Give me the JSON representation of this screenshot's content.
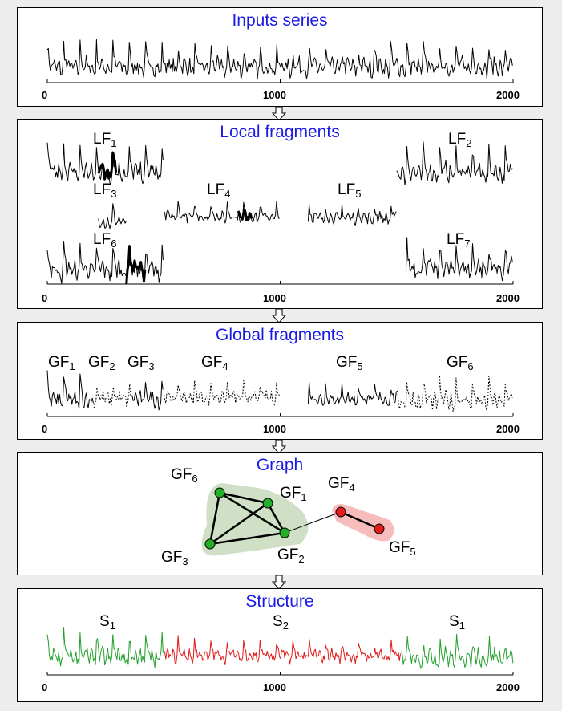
{
  "colors": {
    "title": "#1a1ae6",
    "green": "#22a02a",
    "red": "#e01818",
    "node_green": "#22b02a",
    "node_red": "#e41c1c",
    "hull_green": "#cfe0c6",
    "hull_red": "#f7bcbc"
  },
  "axis_ticks": [
    "0",
    "1000",
    "2000"
  ],
  "panels": {
    "inputs": {
      "title": "Inputs series"
    },
    "local": {
      "title": "Local fragments",
      "fragments": [
        {
          "name": "LF",
          "sub": "1"
        },
        {
          "name": "LF",
          "sub": "2"
        },
        {
          "name": "LF",
          "sub": "3"
        },
        {
          "name": "LF",
          "sub": "4"
        },
        {
          "name": "LF",
          "sub": "5"
        },
        {
          "name": "LF",
          "sub": "6"
        },
        {
          "name": "LF",
          "sub": "7"
        }
      ]
    },
    "global": {
      "title": "Global fragments",
      "fragments": [
        {
          "name": "GF",
          "sub": "1"
        },
        {
          "name": "GF",
          "sub": "2"
        },
        {
          "name": "GF",
          "sub": "3"
        },
        {
          "name": "GF",
          "sub": "4"
        },
        {
          "name": "GF",
          "sub": "5"
        },
        {
          "name": "GF",
          "sub": "6"
        }
      ]
    },
    "graph": {
      "title": "Graph",
      "nodes": [
        {
          "name": "GF",
          "sub": "6"
        },
        {
          "name": "GF",
          "sub": "1"
        },
        {
          "name": "GF",
          "sub": "3"
        },
        {
          "name": "GF",
          "sub": "2"
        },
        {
          "name": "GF",
          "sub": "4"
        },
        {
          "name": "GF",
          "sub": "5"
        }
      ]
    },
    "structure": {
      "title": "Structure",
      "segments": [
        {
          "name": "S",
          "sub": "1"
        },
        {
          "name": "S",
          "sub": "2"
        },
        {
          "name": "S",
          "sub": "1"
        }
      ]
    }
  }
}
